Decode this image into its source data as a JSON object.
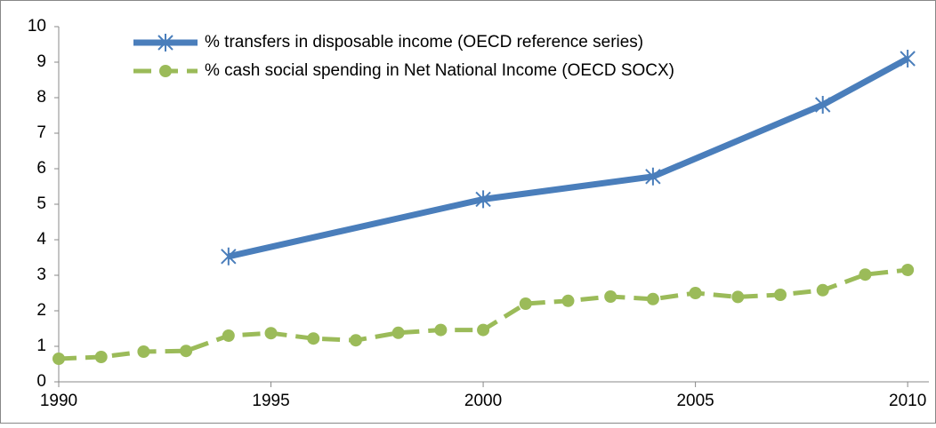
{
  "chart_data": {
    "type": "line",
    "xlim": [
      1990,
      2010.5
    ],
    "xticks": [
      1990,
      1995,
      2000,
      2005,
      2010
    ],
    "ylim": [
      0,
      10
    ],
    "yticks": [
      0,
      1,
      2,
      3,
      4,
      5,
      6,
      7,
      8,
      9,
      10
    ],
    "grid": false,
    "legend": "top-left",
    "series": [
      {
        "name": "% transfers in disposable income (OECD reference series)",
        "color": "#4a7ebb",
        "marker": "star",
        "dashed": false,
        "x": [
          1994,
          2000,
          2004,
          2008,
          2010
        ],
        "values": [
          3.53,
          5.14,
          5.78,
          7.8,
          9.1
        ]
      },
      {
        "name": "% cash social spending in Net National Income (OECD SOCX)",
        "color": "#9bbb59",
        "marker": "circle",
        "dashed": true,
        "x": [
          1990,
          1991,
          1992,
          1993,
          1994,
          1995,
          1996,
          1997,
          1998,
          1999,
          2000,
          2001,
          2002,
          2003,
          2004,
          2005,
          2006,
          2007,
          2008,
          2009,
          2010
        ],
        "values": [
          0.65,
          0.7,
          0.85,
          0.87,
          1.3,
          1.37,
          1.22,
          1.17,
          1.38,
          1.46,
          1.46,
          2.2,
          2.28,
          2.4,
          2.33,
          2.5,
          2.39,
          2.45,
          2.58,
          3.02,
          3.15
        ]
      }
    ]
  }
}
